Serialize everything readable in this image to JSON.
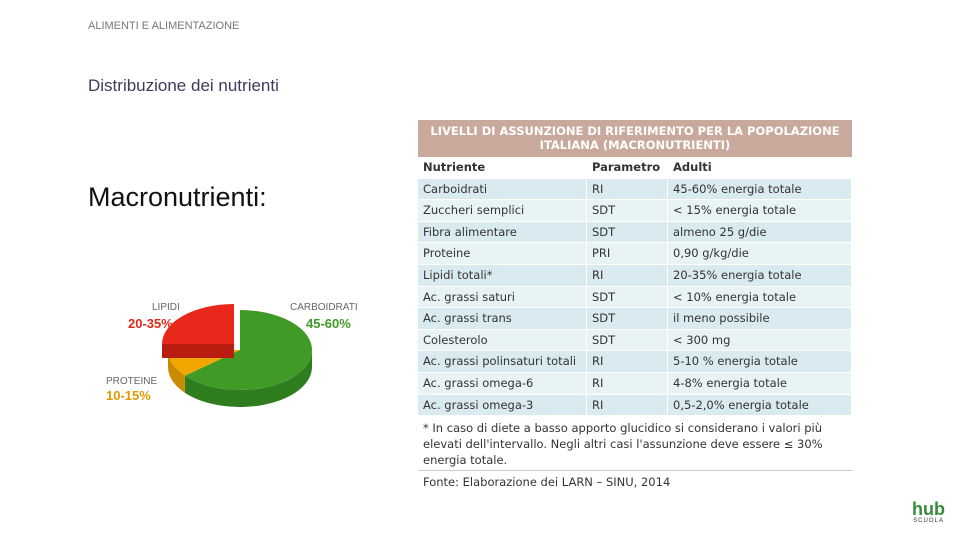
{
  "header": {
    "section": "ALIMENTI E ALIMENTAZIONE",
    "title": "Distribuzione dei nutrienti",
    "heading": "Macronutrienti:"
  },
  "pie": {
    "labels": [
      {
        "name": "LIPIDI",
        "range": "20-35%"
      },
      {
        "name": "CARBOIDRATI",
        "range": "45-60%"
      },
      {
        "name": "PROTEINE",
        "range": "10-15%"
      }
    ]
  },
  "table": {
    "title": "LIVELLI DI ASSUNZIONE DI RIFERIMENTO PER LA POPOLAZIONE ITALIANA (MACRONUTRIENTI)",
    "columns": [
      "Nutriente",
      "Parametro",
      "Adulti"
    ],
    "rows": [
      [
        "Carboidrati",
        "RI",
        "45-60% energia totale"
      ],
      [
        "Zuccheri semplici",
        "SDT",
        "< 15% energia totale"
      ],
      [
        "Fibra alimentare",
        "SDT",
        "almeno 25 g/die"
      ],
      [
        "Proteine",
        "PRI",
        "0,90 g/kg/die"
      ],
      [
        "Lipidi totali*",
        "RI",
        "20-35% energia totale"
      ],
      [
        "Ac. grassi saturi",
        "SDT",
        "< 10% energia totale"
      ],
      [
        "Ac. grassi trans",
        "SDT",
        "il meno possibile"
      ],
      [
        "Colesterolo",
        "SDT",
        "< 300 mg"
      ],
      [
        "Ac. grassi polinsaturi totali",
        "RI",
        "5-10 % energia totale"
      ],
      [
        "Ac. grassi omega-6",
        "RI",
        "4-8% energia totale"
      ],
      [
        "Ac. grassi omega-3",
        "RI",
        "0,5-2,0% energia totale"
      ]
    ],
    "footnote": "* In caso di diete a basso apporto glucidico si considerano i valori più elevati dell'intervallo. Negli altri casi l'assunzione deve essere ≤ 30% energia totale.",
    "source": "Fonte: Elaborazione dei LARN – SINU, 2014"
  },
  "logo": {
    "brand": "hub",
    "sub": "SCUOLA"
  }
}
